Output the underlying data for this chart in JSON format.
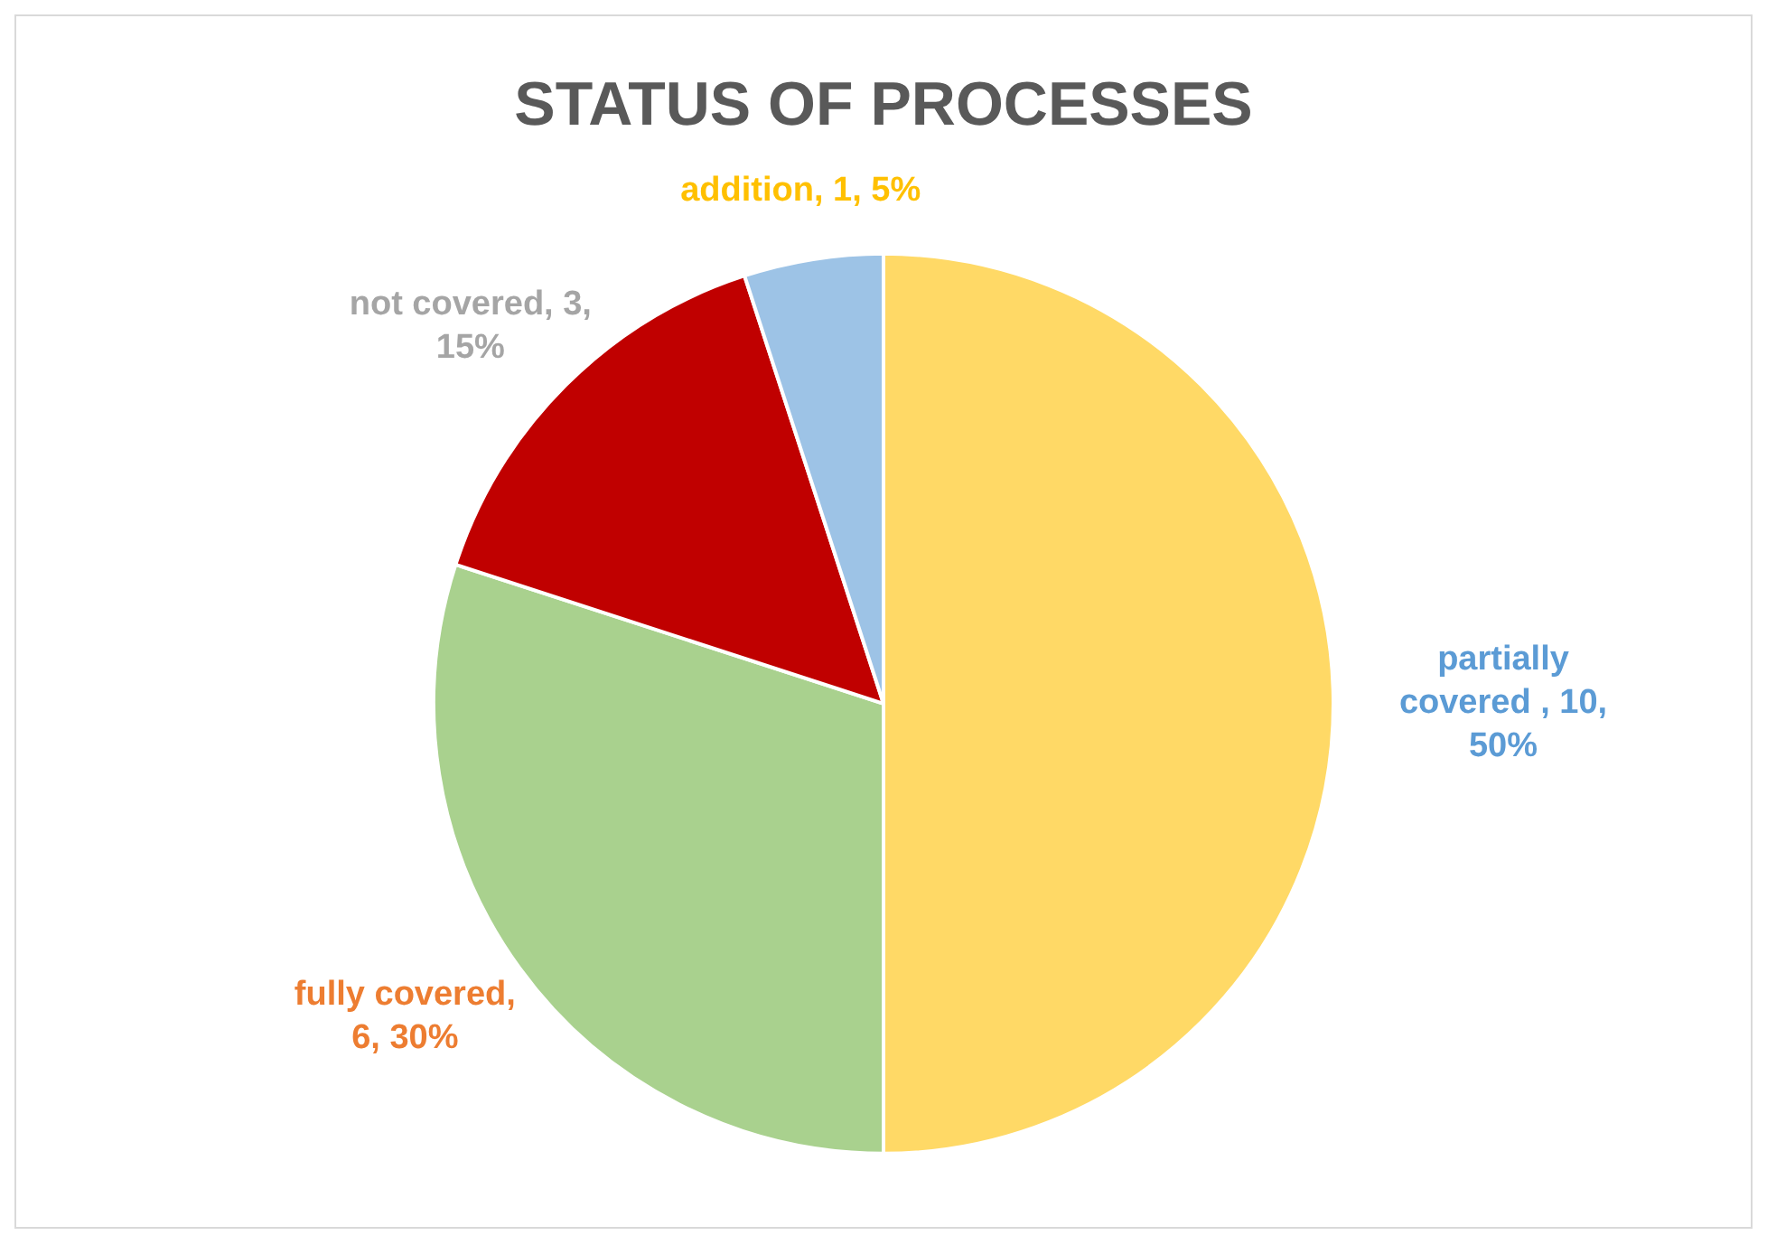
{
  "chart_data": {
    "type": "pie",
    "title": "STATUS OF PROCESSES",
    "categories": [
      "partially covered ",
      "fully covered",
      "not covered",
      "addition"
    ],
    "values": [
      10,
      6,
      3,
      1
    ],
    "value_labels": [
      ", 10, 50%",
      ", 6, 30%",
      ", 3, 15%",
      ", 1, 5%"
    ],
    "colors": [
      "#ffd966",
      "#a9d18e",
      "#c00000",
      "#9dc3e6"
    ],
    "legend": false
  }
}
